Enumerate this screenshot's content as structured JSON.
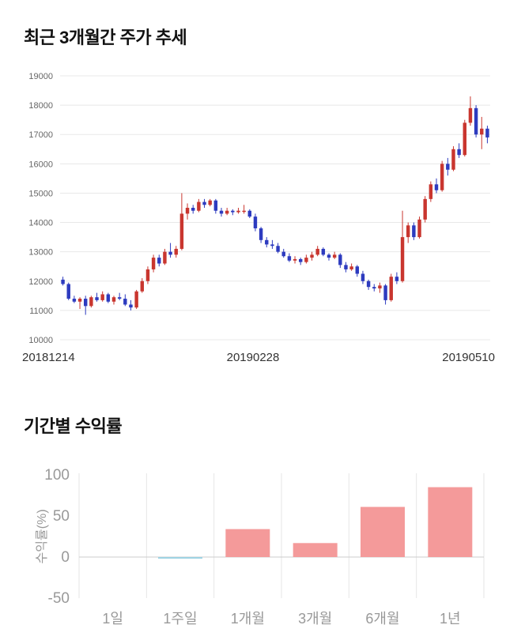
{
  "price_chart_title": "최근 3개월간 주가 추세",
  "returns_chart_title": "기간별 수익률",
  "chart_data": [
    {
      "type": "candlestick",
      "title": "최근 3개월간 주가 추세",
      "x_labels": [
        "20181214",
        "20190228",
        "20190510"
      ],
      "y_ticks": [
        10000,
        11000,
        12000,
        13000,
        14000,
        15000,
        16000,
        17000,
        18000,
        19000
      ],
      "ylim": [
        10000,
        19000
      ],
      "up_color": "#c9362f",
      "down_color": "#2d3bbf",
      "grid_color": "#e8e8e8",
      "candles_format": "open-high-low-close",
      "candles": [
        [
          12050,
          12150,
          11850,
          11900
        ],
        [
          11900,
          11950,
          11350,
          11400
        ],
        [
          11400,
          11500,
          11250,
          11300
        ],
        [
          11300,
          11450,
          11050,
          11400
        ],
        [
          11400,
          11500,
          10850,
          11150
        ],
        [
          11150,
          11500,
          11100,
          11450
        ],
        [
          11450,
          11600,
          11300,
          11350
        ],
        [
          11350,
          11650,
          11300,
          11550
        ],
        [
          11550,
          11600,
          11250,
          11300
        ],
        [
          11300,
          11500,
          11200,
          11450
        ],
        [
          11450,
          11600,
          11350,
          11400
        ],
        [
          11400,
          11550,
          11150,
          11200
        ],
        [
          11200,
          11350,
          11000,
          11100
        ],
        [
          11100,
          11700,
          11050,
          11650
        ],
        [
          11650,
          12100,
          11600,
          12000
        ],
        [
          12000,
          12500,
          11900,
          12400
        ],
        [
          12400,
          12900,
          12300,
          12800
        ],
        [
          12800,
          12900,
          12500,
          12600
        ],
        [
          12600,
          13100,
          12550,
          13000
        ],
        [
          13000,
          13300,
          12800,
          12900
        ],
        [
          12900,
          13200,
          12800,
          13100
        ],
        [
          13100,
          15000,
          13050,
          14300
        ],
        [
          14300,
          14650,
          14100,
          14500
        ],
        [
          14500,
          14600,
          14300,
          14400
        ],
        [
          14400,
          14800,
          14350,
          14700
        ],
        [
          14700,
          14800,
          14500,
          14600
        ],
        [
          14600,
          14800,
          14550,
          14750
        ],
        [
          14750,
          14800,
          14300,
          14400
        ],
        [
          14400,
          14500,
          14200,
          14300
        ],
        [
          14300,
          14500,
          14250,
          14400
        ],
        [
          14400,
          14450,
          14250,
          14350
        ],
        [
          14350,
          14500,
          14300,
          14400
        ],
        [
          14400,
          14600,
          14300,
          14400
        ],
        [
          14400,
          14450,
          14150,
          14200
        ],
        [
          14200,
          14300,
          13700,
          13800
        ],
        [
          13800,
          13850,
          13300,
          13400
        ],
        [
          13400,
          13500,
          13150,
          13250
        ],
        [
          13250,
          13400,
          13100,
          13200
        ],
        [
          13200,
          13300,
          12950,
          13000
        ],
        [
          13000,
          13100,
          12800,
          12850
        ],
        [
          12850,
          12950,
          12650,
          12700
        ],
        [
          12700,
          12850,
          12600,
          12750
        ],
        [
          12750,
          12800,
          12550,
          12650
        ],
        [
          12650,
          12900,
          12600,
          12800
        ],
        [
          12800,
          13000,
          12700,
          12900
        ],
        [
          12900,
          13200,
          12850,
          13100
        ],
        [
          13100,
          13150,
          12850,
          12900
        ],
        [
          12900,
          12950,
          12700,
          12800
        ],
        [
          12800,
          13000,
          12750,
          12900
        ],
        [
          12900,
          12950,
          12450,
          12550
        ],
        [
          12550,
          12650,
          12300,
          12400
        ],
        [
          12400,
          12600,
          12350,
          12500
        ],
        [
          12500,
          12550,
          12150,
          12250
        ],
        [
          12250,
          12350,
          11900,
          12000
        ],
        [
          12000,
          12050,
          11700,
          11800
        ],
        [
          11800,
          11900,
          11650,
          11750
        ],
        [
          11750,
          11950,
          11600,
          11850
        ],
        [
          11850,
          11900,
          11200,
          11350
        ],
        [
          11350,
          12250,
          11300,
          12150
        ],
        [
          12150,
          12300,
          11900,
          12000
        ],
        [
          12000,
          14400,
          11950,
          13500
        ],
        [
          13500,
          14000,
          13300,
          13900
        ],
        [
          13900,
          14000,
          13400,
          13500
        ],
        [
          13500,
          14200,
          13450,
          14100
        ],
        [
          14100,
          14900,
          14000,
          14800
        ],
        [
          14800,
          15400,
          14700,
          15300
        ],
        [
          15300,
          15500,
          15000,
          15100
        ],
        [
          15100,
          16100,
          15050,
          16000
        ],
        [
          16000,
          16200,
          15600,
          15800
        ],
        [
          15800,
          16600,
          15750,
          16500
        ],
        [
          16500,
          16700,
          16200,
          16300
        ],
        [
          16300,
          17500,
          16250,
          17400
        ],
        [
          17400,
          18300,
          17300,
          17900
        ],
        [
          17900,
          18000,
          16900,
          17000
        ],
        [
          17000,
          17600,
          16500,
          17200
        ],
        [
          17200,
          17300,
          16700,
          16900
        ]
      ]
    },
    {
      "type": "bar",
      "title": "기간별 수익률",
      "ylabel": "수익률(%)",
      "categories": [
        "1일",
        "1주일",
        "1개월",
        "3개월",
        "6개월",
        "1년"
      ],
      "values": [
        0,
        -2,
        34,
        17,
        61,
        85
      ],
      "y_ticks": [
        -50,
        0,
        50,
        100
      ],
      "ylim": [
        -50,
        100
      ],
      "bar_color": "#f49a9a",
      "negative_bar_color": "#9fd3e3",
      "grid_color": "#e6e6e6",
      "zero_line_color": "#cccccc",
      "legend": "none",
      "grid": "vertical"
    }
  ]
}
